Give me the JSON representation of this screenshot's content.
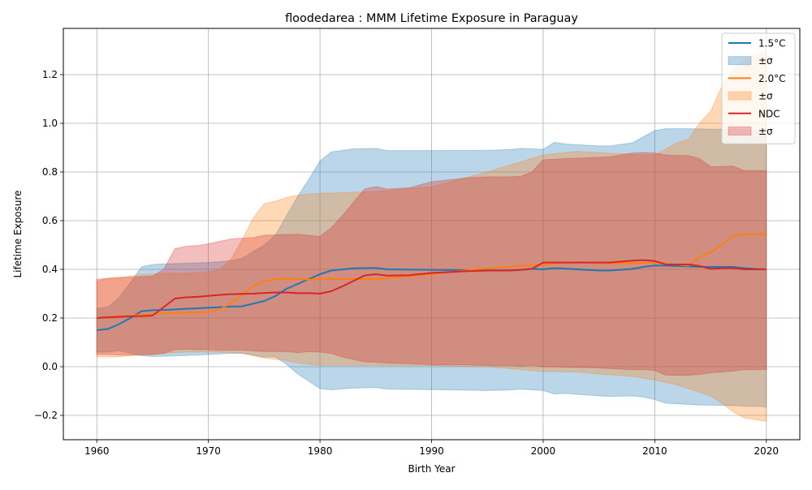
{
  "chart_data": {
    "type": "line",
    "title": "floodedarea : MMM Lifetime Exposure in Paraguay",
    "xlabel": "Birth Year",
    "ylabel": "Lifetime Exposure",
    "xlim": [
      1957,
      2023
    ],
    "ylim": [
      -0.3,
      1.39
    ],
    "xticks": [
      1960,
      1970,
      1980,
      1990,
      2000,
      2010,
      2020
    ],
    "yticks": [
      -0.2,
      0.0,
      0.2,
      0.4,
      0.6,
      0.8,
      1.0,
      1.2
    ],
    "x_tick_labels": [
      "1960",
      "1970",
      "1980",
      "1990",
      "2000",
      "2010",
      "2020"
    ],
    "y_tick_labels": [
      "−0.2",
      "0.0",
      "0.2",
      "0.4",
      "0.6",
      "0.8",
      "1.0",
      "1.2"
    ],
    "grid": true,
    "legend_position": "top-right",
    "legend": [
      {
        "label": "1.5°C",
        "kind": "line",
        "series": 0
      },
      {
        "label": "±σ",
        "kind": "band",
        "series": 0
      },
      {
        "label": "2.0°C",
        "kind": "line",
        "series": 1
      },
      {
        "label": "±σ",
        "kind": "band",
        "series": 1
      },
      {
        "label": "NDC",
        "kind": "line",
        "series": 2
      },
      {
        "label": "±σ",
        "kind": "band",
        "series": 2
      }
    ],
    "series": [
      {
        "name": "1.5°C",
        "color": "#1f77b4",
        "band_color": "#1f77b4",
        "x": [
          1960,
          1961,
          1962,
          1963,
          1964,
          1965,
          1966,
          1968,
          1970,
          1972,
          1973,
          1975,
          1976,
          1977,
          1978,
          1979,
          1980,
          1981,
          1983,
          1985,
          1986,
          1990,
          1995,
          1997,
          1998,
          1999,
          2000,
          2001,
          2002,
          2005,
          2006,
          2008,
          2009,
          2010,
          2011,
          2013,
          2014,
          2015,
          2017,
          2018,
          2019,
          2020
        ],
        "mean": [
          0.15,
          0.155,
          0.175,
          0.2,
          0.228,
          0.232,
          0.233,
          0.238,
          0.242,
          0.247,
          0.248,
          0.27,
          0.29,
          0.32,
          0.34,
          0.36,
          0.38,
          0.395,
          0.404,
          0.406,
          0.4,
          0.398,
          0.396,
          0.396,
          0.398,
          0.402,
          0.4,
          0.405,
          0.403,
          0.395,
          0.395,
          0.402,
          0.41,
          0.416,
          0.415,
          0.412,
          0.41,
          0.41,
          0.41,
          0.405,
          0.402,
          0.4
        ],
        "upper": [
          0.24,
          0.245,
          0.285,
          0.345,
          0.41,
          0.42,
          0.422,
          0.425,
          0.428,
          0.435,
          0.445,
          0.5,
          0.54,
          0.62,
          0.7,
          0.77,
          0.845,
          0.882,
          0.895,
          0.897,
          0.888,
          0.888,
          0.889,
          0.892,
          0.897,
          0.895,
          0.893,
          0.922,
          0.915,
          0.907,
          0.907,
          0.92,
          0.945,
          0.97,
          0.978,
          0.978,
          0.977,
          0.976,
          0.975,
          0.972,
          0.97,
          0.968
        ],
        "lower": [
          0.06,
          0.06,
          0.065,
          0.055,
          0.045,
          0.042,
          0.043,
          0.046,
          0.05,
          0.055,
          0.055,
          0.04,
          0.04,
          0.01,
          -0.03,
          -0.06,
          -0.09,
          -0.095,
          -0.088,
          -0.086,
          -0.092,
          -0.094,
          -0.098,
          -0.096,
          -0.092,
          -0.095,
          -0.098,
          -0.112,
          -0.11,
          -0.12,
          -0.122,
          -0.12,
          -0.125,
          -0.135,
          -0.15,
          -0.155,
          -0.158,
          -0.158,
          -0.16,
          -0.162,
          -0.163,
          -0.165
        ]
      },
      {
        "name": "2.0°C",
        "color": "#ff7f0e",
        "band_color": "#ff7f0e",
        "x": [
          1960,
          1961,
          1962,
          1963,
          1964,
          1965,
          1966,
          1968,
          1970,
          1971,
          1972,
          1973,
          1974,
          1975,
          1976,
          1977,
          1978,
          1979,
          1980,
          1985,
          1990,
          1995,
          2000,
          2003,
          2005,
          2008,
          2010,
          2012,
          2013,
          2014,
          2015,
          2016,
          2017,
          2018,
          2020
        ],
        "mean": [
          0.2,
          0.205,
          0.207,
          0.21,
          0.213,
          0.217,
          0.22,
          0.222,
          0.225,
          0.235,
          0.26,
          0.295,
          0.33,
          0.352,
          0.358,
          0.362,
          0.36,
          0.358,
          0.36,
          0.36,
          0.38,
          0.405,
          0.42,
          0.43,
          0.425,
          0.425,
          0.428,
          0.42,
          0.415,
          0.45,
          0.47,
          0.5,
          0.535,
          0.545,
          0.545
        ],
        "upper": [
          0.35,
          0.365,
          0.368,
          0.372,
          0.378,
          0.38,
          0.385,
          0.385,
          0.39,
          0.4,
          0.44,
          0.52,
          0.61,
          0.67,
          0.68,
          0.695,
          0.705,
          0.71,
          0.712,
          0.72,
          0.74,
          0.8,
          0.87,
          0.885,
          0.88,
          0.872,
          0.87,
          0.92,
          0.935,
          1.0,
          1.05,
          1.15,
          1.22,
          1.26,
          1.3
        ],
        "lower": [
          0.04,
          0.04,
          0.04,
          0.045,
          0.048,
          0.05,
          0.055,
          0.06,
          0.06,
          0.06,
          0.058,
          0.055,
          0.045,
          0.035,
          0.03,
          0.025,
          0.015,
          0.01,
          0.005,
          0.005,
          0.005,
          0.0,
          -0.02,
          -0.022,
          -0.03,
          -0.04,
          -0.055,
          -0.075,
          -0.09,
          -0.105,
          -0.12,
          -0.15,
          -0.185,
          -0.21,
          -0.225
        ]
      },
      {
        "name": "NDC",
        "color": "#d62728",
        "band_color": "#d62728",
        "x": [
          1960,
          1961,
          1962,
          1963,
          1964,
          1965,
          1966,
          1967,
          1968,
          1969,
          1970,
          1971,
          1972,
          1973,
          1974,
          1975,
          1976,
          1977,
          1978,
          1979,
          1980,
          1981,
          1982,
          1983,
          1984,
          1985,
          1986,
          1988,
          1990,
          1993,
          1995,
          1997,
          1998,
          1999,
          2000,
          2002,
          2005,
          2006,
          2008,
          2009,
          2010,
          2011,
          2012,
          2013,
          2014,
          2015,
          2016,
          2017,
          2018,
          2019,
          2020
        ],
        "mean": [
          0.2,
          0.203,
          0.205,
          0.207,
          0.208,
          0.21,
          0.245,
          0.28,
          0.285,
          0.287,
          0.291,
          0.295,
          0.298,
          0.299,
          0.3,
          0.303,
          0.305,
          0.305,
          0.302,
          0.302,
          0.3,
          0.31,
          0.33,
          0.352,
          0.375,
          0.38,
          0.374,
          0.376,
          0.385,
          0.392,
          0.395,
          0.395,
          0.398,
          0.402,
          0.428,
          0.428,
          0.428,
          0.428,
          0.436,
          0.438,
          0.434,
          0.42,
          0.42,
          0.42,
          0.414,
          0.402,
          0.404,
          0.405,
          0.4,
          0.4,
          0.4
        ],
        "upper": [
          0.36,
          0.362,
          0.365,
          0.368,
          0.37,
          0.372,
          0.4,
          0.485,
          0.495,
          0.498,
          0.505,
          0.515,
          0.525,
          0.528,
          0.53,
          0.54,
          0.542,
          0.543,
          0.544,
          0.54,
          0.535,
          0.57,
          0.62,
          0.675,
          0.73,
          0.74,
          0.73,
          0.735,
          0.76,
          0.775,
          0.78,
          0.78,
          0.782,
          0.8,
          0.85,
          0.855,
          0.86,
          0.862,
          0.878,
          0.88,
          0.878,
          0.87,
          0.868,
          0.868,
          0.855,
          0.822,
          0.822,
          0.824,
          0.806,
          0.806,
          0.806
        ],
        "lower": [
          0.05,
          0.05,
          0.048,
          0.048,
          0.05,
          0.05,
          0.055,
          0.07,
          0.072,
          0.07,
          0.07,
          0.068,
          0.068,
          0.068,
          0.065,
          0.062,
          0.062,
          0.062,
          0.058,
          0.062,
          0.06,
          0.055,
          0.04,
          0.03,
          0.02,
          0.018,
          0.015,
          0.012,
          0.008,
          0.008,
          0.005,
          0.005,
          0.002,
          0.005,
          0.0,
          -0.002,
          -0.005,
          -0.008,
          -0.012,
          -0.012,
          -0.015,
          -0.035,
          -0.035,
          -0.035,
          -0.032,
          -0.025,
          -0.022,
          -0.018,
          -0.012,
          -0.012,
          -0.012
        ]
      }
    ]
  }
}
